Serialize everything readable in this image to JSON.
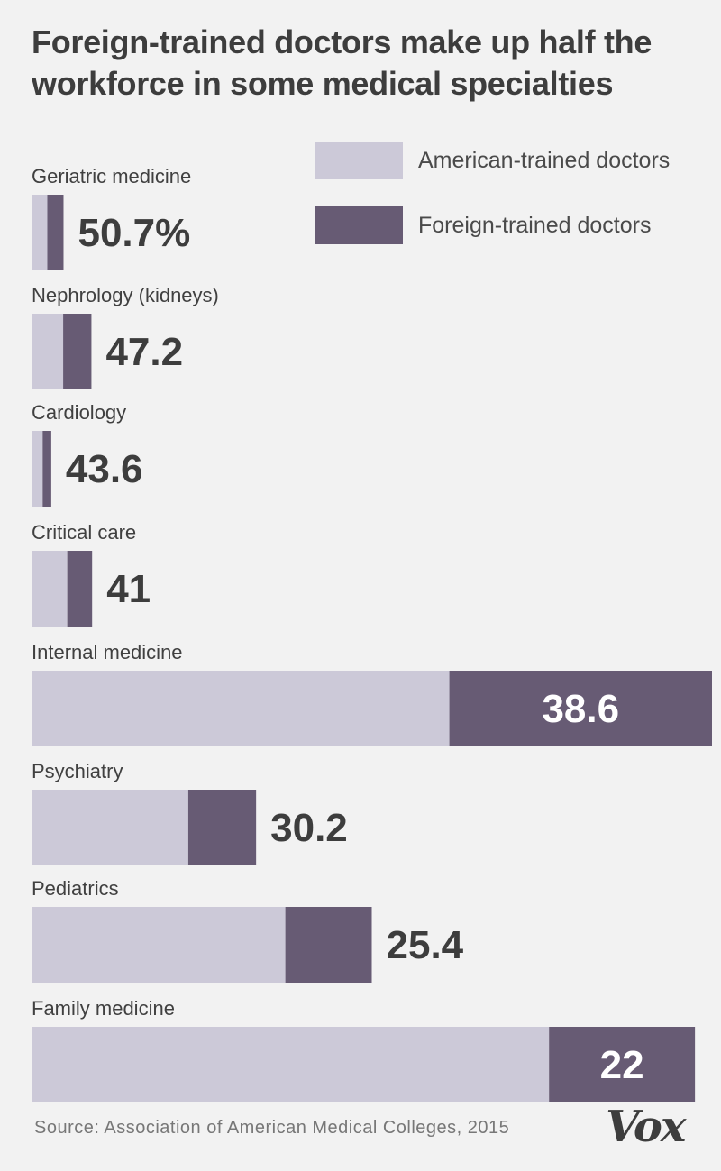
{
  "title": "Foreign-trained doctors make up half the workforce in some medical specialties",
  "legend": [
    {
      "label": "American-trained doctors",
      "color": "#ccc9d8"
    },
    {
      "label": "Foreign-trained doctors",
      "color": "#675b74"
    }
  ],
  "source": "Source: Association of American Medical Colleges, 2015",
  "logo": "Vox",
  "chart_data": {
    "type": "bar",
    "stacked": true,
    "orientation": "horizontal",
    "unit": "% foreign-trained",
    "categories": [
      "Geriatric medicine",
      "Nephrology (kidneys)",
      "Cardiology",
      "Critical care",
      "Internal medicine",
      "Psychiatry",
      "Pediatrics",
      "Family medicine"
    ],
    "value_labels": [
      "50.7%",
      "47.2",
      "43.6",
      "41",
      "38.6",
      "30.2",
      "25.4",
      "22"
    ],
    "series": [
      {
        "name": "American-trained doctors",
        "values": [
          49.3,
          52.8,
          56.4,
          59.0,
          61.4,
          69.8,
          74.6,
          78.0
        ]
      },
      {
        "name": "Foreign-trained doctors",
        "values": [
          50.7,
          47.2,
          43.6,
          41.0,
          38.6,
          30.2,
          25.4,
          22.0
        ]
      }
    ],
    "bar_length_relative": [
      0.047,
      0.088,
      0.029,
      0.089,
      1.0,
      0.33,
      0.5,
      0.975
    ],
    "colors": {
      "american": "#ccc9d8",
      "foreign": "#675b74"
    }
  }
}
